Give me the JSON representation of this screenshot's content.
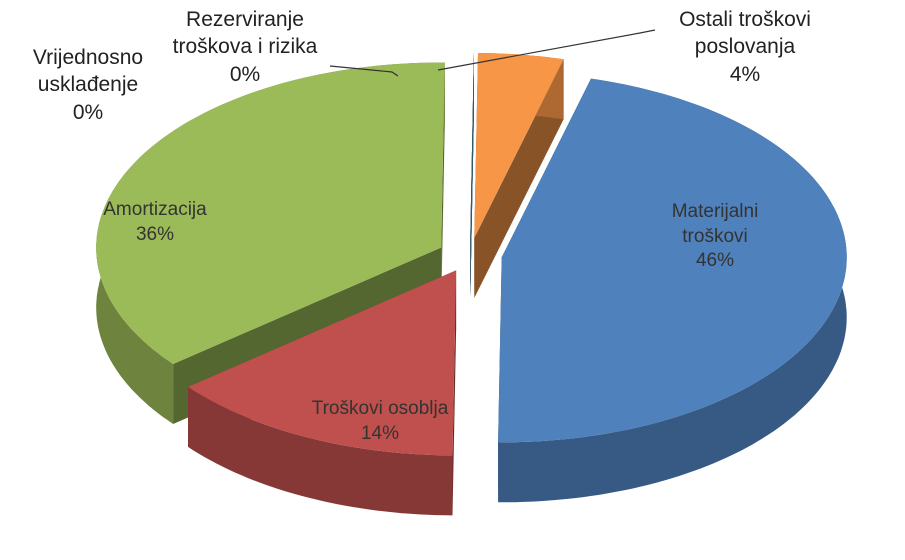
{
  "chart_data": {
    "type": "pie3d",
    "categories": [
      "Materijalni troškovi",
      "Troškovi osoblja",
      "Amortizacija",
      "Vrijednosno usklađenje",
      "Rezerviranje troškova i rizika",
      "Ostali troškovi poslovanja"
    ],
    "values": [
      46,
      14,
      36,
      0,
      0,
      4
    ],
    "value_labels": [
      "46%",
      "14%",
      "36%",
      "0%",
      "0%",
      "4%"
    ],
    "colors": [
      "#4f81bd",
      "#c0504d",
      "#9bbb59",
      "#8064a2",
      "#4bacc6",
      "#f79646"
    ]
  }
}
